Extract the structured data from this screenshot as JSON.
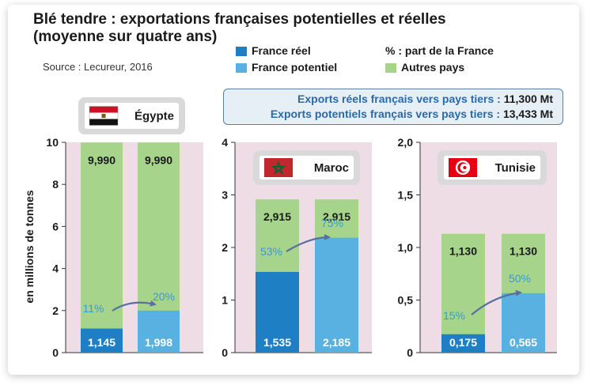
{
  "title_line1": "Blé tendre : exportations françaises potentielles et réelles",
  "title_line2": "(moyenne sur quatre ans)",
  "source": "Source : Lecureur, 2016",
  "legend": [
    {
      "label": "France réel",
      "color": "#1f7fc4"
    },
    {
      "label": "France potentiel",
      "color": "#58b1e0"
    },
    {
      "label": "% : part de la France",
      "color": ""
    },
    {
      "label": "Autres pays",
      "color": "#a6d48a"
    }
  ],
  "totals": [
    {
      "label": "Exports réels français vers pays tiers :",
      "value": "11,300 Mt"
    },
    {
      "label": "Exports potentiels français vers pays tiers :",
      "value": "13,433 Mt"
    }
  ],
  "colors": {
    "reel": "#1f7fc4",
    "potentiel": "#58b1e0",
    "autres": "#a6d48a",
    "panel_bg": "#eedde5",
    "pct_text": "#3a9bd2",
    "arrow": "#5a6fa0"
  },
  "chart_data": {
    "type": "bar",
    "ylabel": "en millions de tonnes",
    "panels": [
      {
        "country": "Égypte",
        "flag": "egypt",
        "ylim": [
          0,
          10
        ],
        "ticks": [
          "0",
          "2",
          "4",
          "6",
          "8",
          "10"
        ],
        "tick_values": [
          0,
          2,
          4,
          6,
          8,
          10
        ],
        "bars": [
          {
            "series": "France réel",
            "france": 1.145,
            "france_label": "1,145",
            "autres_label": "9,990",
            "pct": "11%"
          },
          {
            "series": "France potentiel",
            "france": 1.998,
            "france_label": "1,998",
            "autres_label": "9,990",
            "pct": "20%"
          }
        ],
        "total": 9.99
      },
      {
        "country": "Maroc",
        "flag": "morocco",
        "ylim": [
          0,
          4
        ],
        "ticks": [
          "0",
          "1",
          "2",
          "3",
          "4"
        ],
        "tick_values": [
          0,
          1,
          2,
          3,
          4
        ],
        "bars": [
          {
            "series": "France réel",
            "france": 1.535,
            "france_label": "1,535",
            "autres_label": "2,915",
            "pct": "53%"
          },
          {
            "series": "France potentiel",
            "france": 2.185,
            "france_label": "2,185",
            "autres_label": "2,915",
            "pct": "75%"
          }
        ],
        "total": 2.915
      },
      {
        "country": "Tunisie",
        "flag": "tunisia",
        "ylim": [
          0,
          2
        ],
        "ticks": [
          "0",
          "0,5",
          "1,0",
          "1,5",
          "2,0"
        ],
        "tick_values": [
          0,
          0.5,
          1,
          1.5,
          2
        ],
        "bars": [
          {
            "series": "France réel",
            "france": 0.175,
            "france_label": "0,175",
            "autres_label": "1,130",
            "pct": "15%"
          },
          {
            "series": "France potentiel",
            "france": 0.565,
            "france_label": "0,565",
            "autres_label": "1,130",
            "pct": "50%"
          }
        ],
        "total": 1.13
      }
    ]
  }
}
